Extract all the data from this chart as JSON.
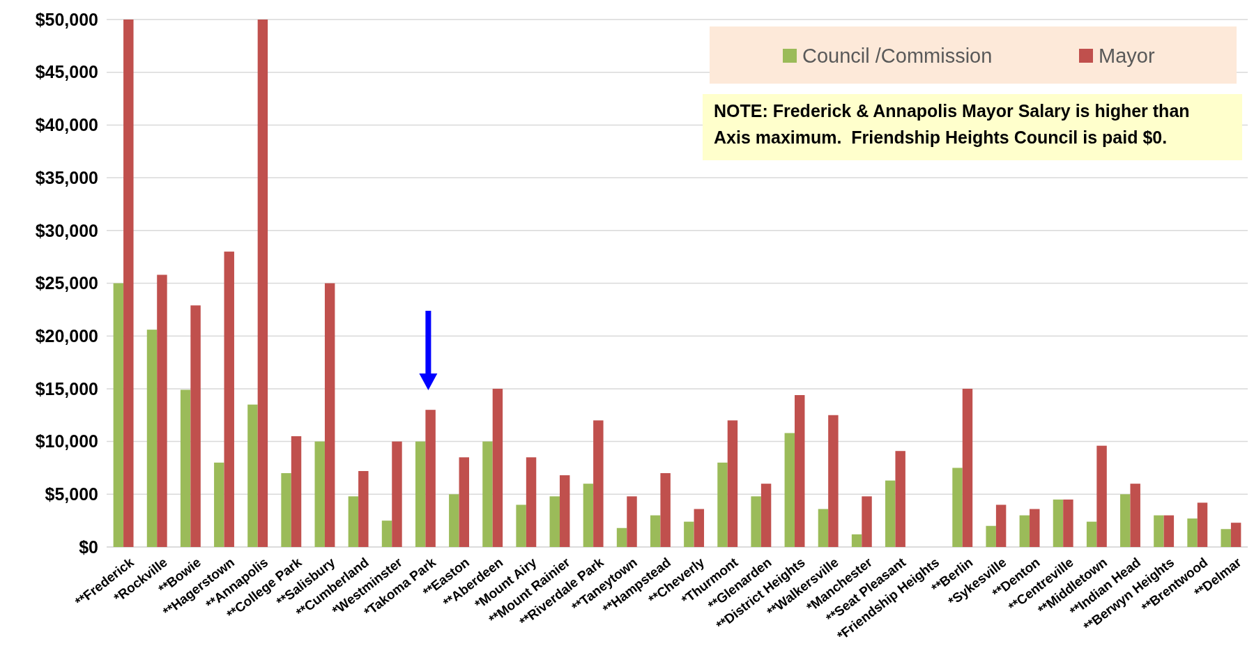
{
  "chart_data": {
    "type": "bar",
    "categories": [
      "**Frederick",
      "*Rockville",
      "**Bowie",
      "**Hagerstown",
      "**Annapolis",
      "**College Park",
      "**Salisbury",
      "**Cumberland",
      "*Westminster",
      "*Takoma Park",
      "**Easton",
      "**Aberdeen",
      "*Mount Airy",
      "**Mount Rainier",
      "**Riverdale Park",
      "**Taneytown",
      "**Hampstead",
      "**Cheverly",
      "*Thurmont",
      "**Glenarden",
      "**District Heights",
      "**Walkersville",
      "*Manchester",
      "**Seat Pleasant",
      "*Friendship Heights",
      "**Berlin",
      "*Sykesville",
      "**Denton",
      "**Centreville",
      "**Middletown",
      "**Indian Head",
      "**Berwyn Heights",
      "**Brentwood",
      "**Delmar"
    ],
    "series": [
      {
        "name": "Council /Commission",
        "color": "#9bbb59",
        "values": [
          25000,
          20600,
          14900,
          8000,
          13500,
          7000,
          10000,
          4800,
          2500,
          10000,
          5000,
          10000,
          4000,
          4800,
          6000,
          1800,
          3000,
          2400,
          8000,
          4800,
          10800,
          3600,
          1200,
          6300,
          0,
          7500,
          2000,
          3000,
          4500,
          2400,
          5000,
          3000,
          2700,
          1700
        ]
      },
      {
        "name": "Mayor",
        "color": "#c0504d",
        "values": [
          50000,
          25800,
          22900,
          28000,
          50000,
          10500,
          25000,
          7200,
          10000,
          13000,
          8500,
          15000,
          8500,
          6800,
          12000,
          4800,
          7000,
          3600,
          12000,
          6000,
          14400,
          12500,
          4800,
          9100,
          null,
          15000,
          4000,
          3600,
          4500,
          9600,
          6000,
          3000,
          4200,
          2300
        ]
      }
    ],
    "ylim": [
      0,
      50000
    ],
    "yticks": [
      {
        "value": 0,
        "label": "$0"
      },
      {
        "value": 5000,
        "label": "$5,000"
      },
      {
        "value": 10000,
        "label": "$10,000"
      },
      {
        "value": 15000,
        "label": "$15,000"
      },
      {
        "value": 20000,
        "label": "$20,000"
      },
      {
        "value": 25000,
        "label": "$25,000"
      },
      {
        "value": 30000,
        "label": "$30,000"
      },
      {
        "value": 35000,
        "label": "$35,000"
      },
      {
        "value": 40000,
        "label": "$40,000"
      },
      {
        "value": 45000,
        "label": "$45,000"
      },
      {
        "value": 50000,
        "label": "$50,000"
      }
    ],
    "grid": "y",
    "legend": "top right",
    "annotations": [
      "NOTE: Frederick & Annapolis Mayor Salary is higher than Axis maximum.  Friendship Heights Council is paid $0."
    ]
  }
}
